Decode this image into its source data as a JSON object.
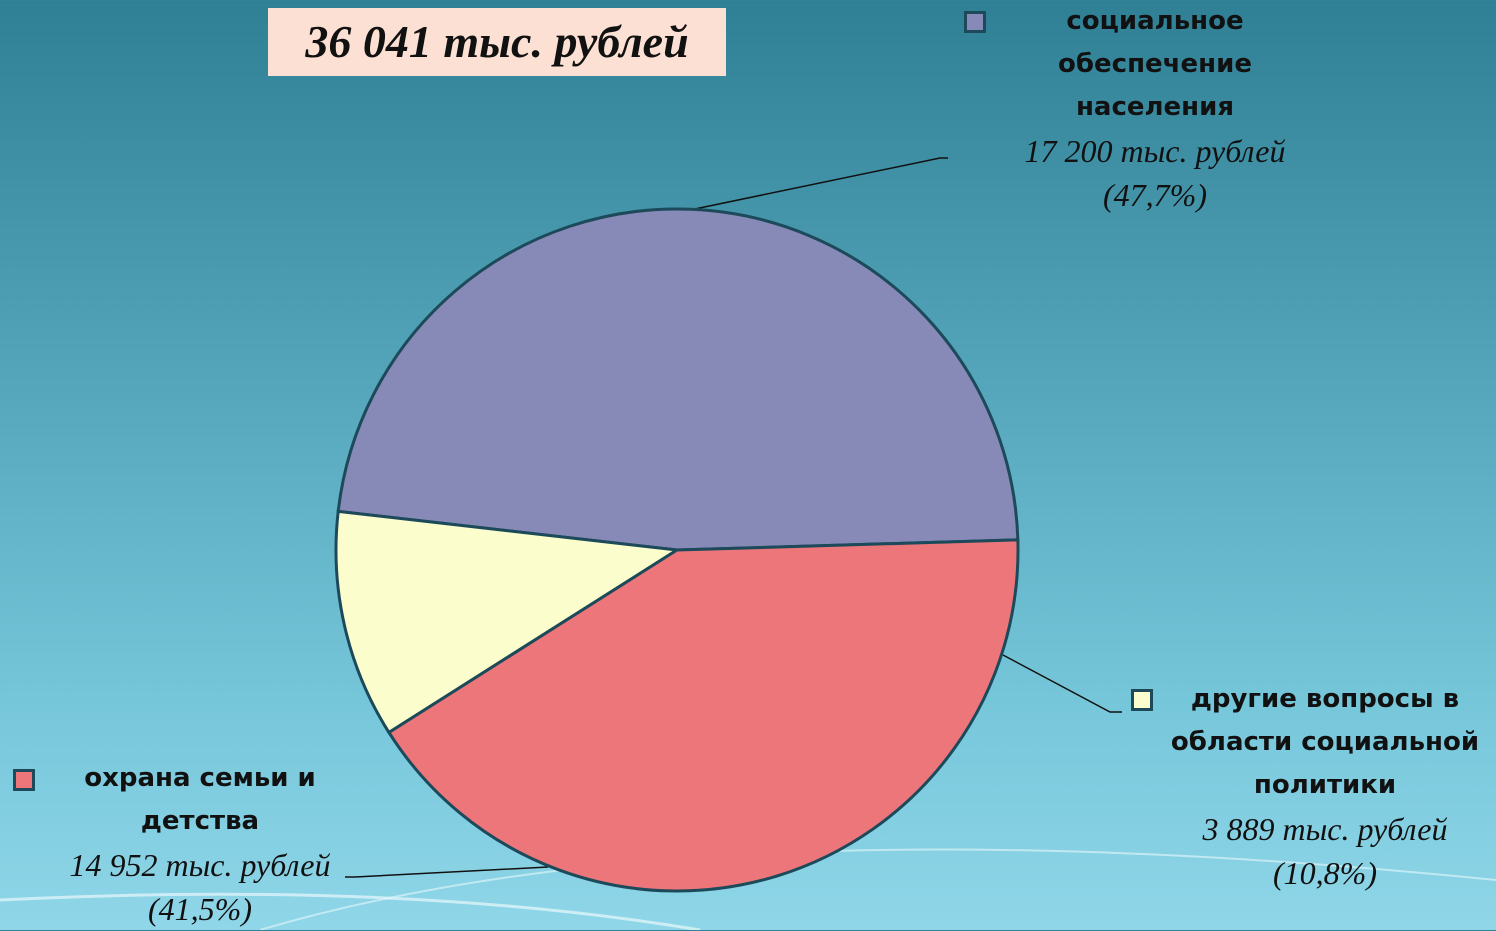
{
  "chart_data": {
    "type": "pie",
    "title": "36 041 тыс. рублей",
    "categories": [
      "социальное обеспечение населения",
      "другие вопросы в области социальной политики",
      "охрана семьи и детства"
    ],
    "values": [
      17200,
      3889,
      14952
    ],
    "value_labels": [
      "17 200 тыс. рублей",
      "3 889 тыс. рублей",
      "14 952 тыс. рублей"
    ],
    "percents": [
      47.7,
      10.8,
      41.5
    ],
    "percent_labels": [
      "(47,7%)",
      "(10,8%)",
      "(41,5%)"
    ],
    "colors": [
      "#8789b6",
      "#fbfdcc",
      "#ed767a"
    ]
  }
}
